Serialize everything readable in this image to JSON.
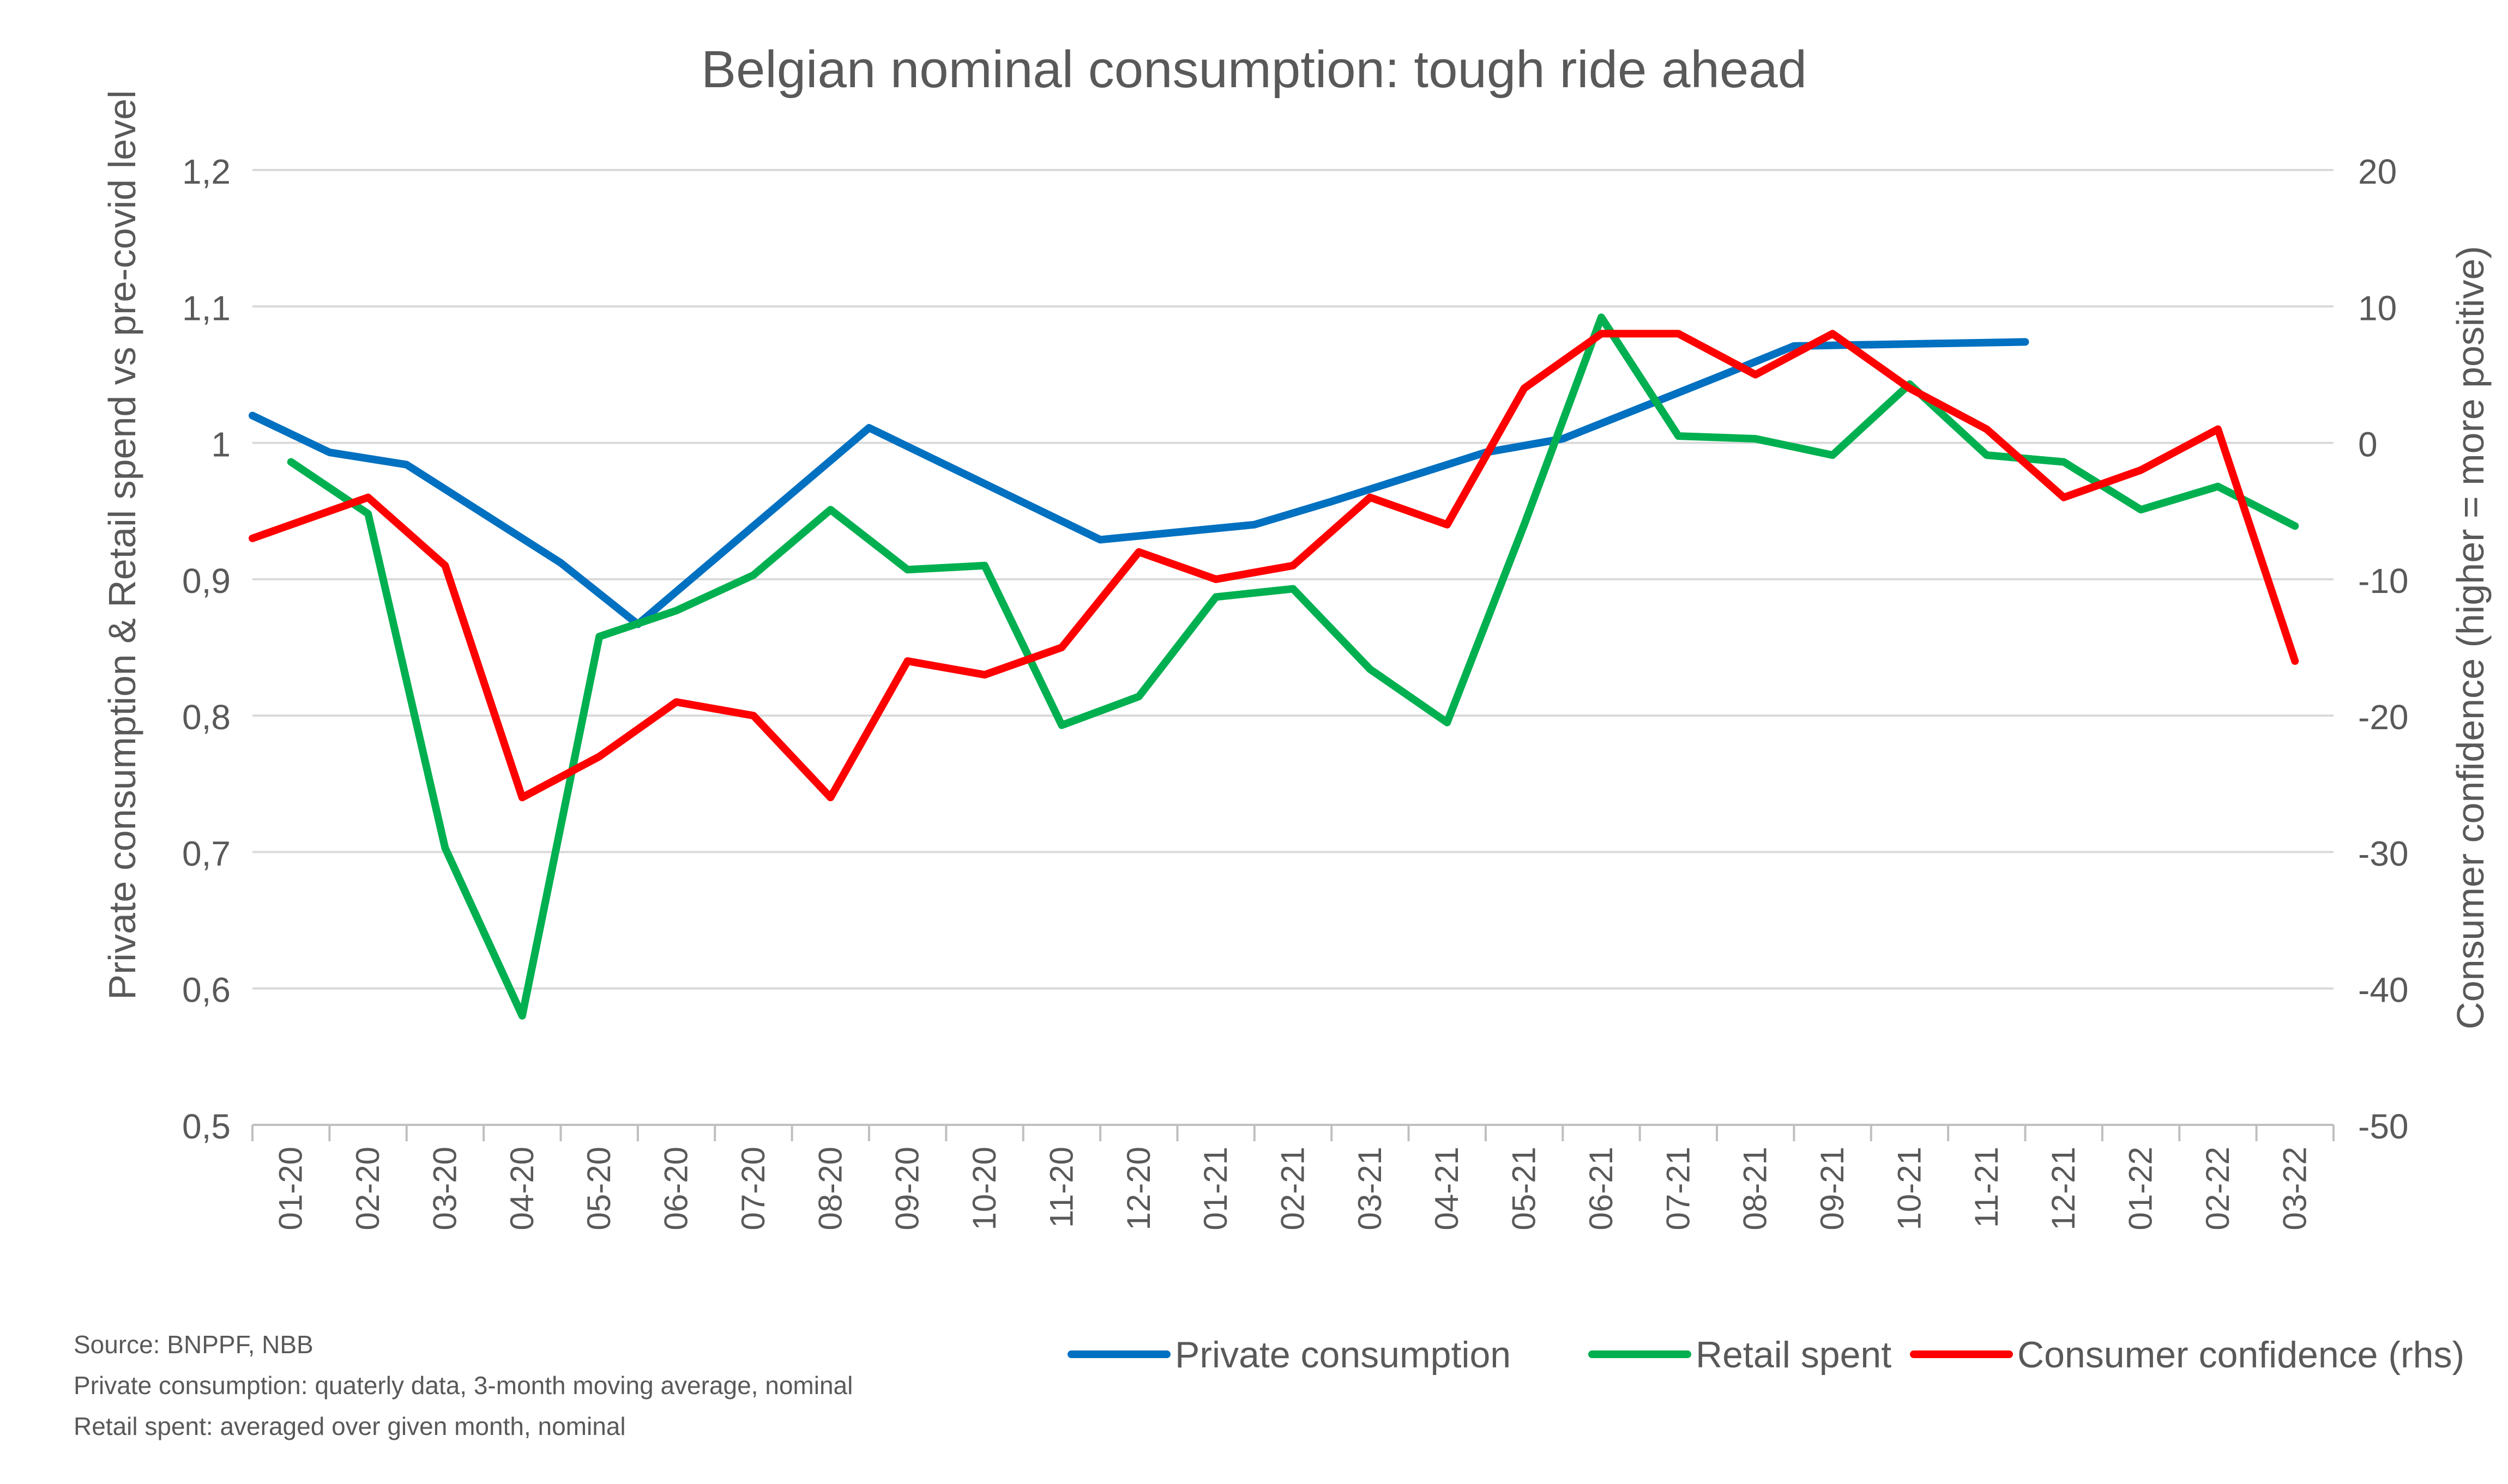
{
  "chart_data": {
    "type": "line",
    "title": "Belgian nominal consumption: tough ride ahead",
    "ylabel": "Private consumption & Retail spend vs pre-covid level",
    "y2label": "Consumer confidence (higher = more positive)",
    "ylim": [
      0.5,
      1.2
    ],
    "y2lim": [
      -50,
      20
    ],
    "yticks": [
      "0,5",
      "0,6",
      "0,7",
      "0,8",
      "0,9",
      "1",
      "1,1",
      "1,2"
    ],
    "y2ticks": [
      "-50",
      "-40",
      "-30",
      "-20",
      "-10",
      "0",
      "10",
      "20"
    ],
    "grid": true,
    "legend_position": "bottom-right",
    "categories": [
      "01-20",
      "02-20",
      "03-20",
      "04-20",
      "05-20",
      "06-20",
      "07-20",
      "08-20",
      "09-20",
      "10-20",
      "11-20",
      "12-20",
      "01-21",
      "02-21",
      "03-21",
      "04-21",
      "05-21",
      "06-21",
      "07-21",
      "08-21",
      "09-21",
      "10-21",
      "11-21",
      "12-21",
      "01-22",
      "02-22",
      "03-22"
    ],
    "series": [
      {
        "name": "Private consumption",
        "axis": "left",
        "color": "#0070C0",
        "points": [
          [
            -0.5,
            1.02
          ],
          [
            0.5,
            0.993
          ],
          [
            1.5,
            0.984
          ],
          [
            3.5,
            0.912
          ],
          [
            4.5,
            0.867
          ],
          [
            7.5,
            1.011
          ],
          [
            10.5,
            0.929
          ],
          [
            12.5,
            0.94
          ],
          [
            13.5,
            0.957
          ],
          [
            15.5,
            0.993
          ],
          [
            16.5,
            1.003
          ],
          [
            18.5,
            1.048
          ],
          [
            19.5,
            1.071
          ],
          [
            22.5,
            1.074
          ]
        ]
      },
      {
        "name": "Retail spent",
        "axis": "left",
        "color": "#00B050",
        "values": [
          0.986,
          0.948,
          0.703,
          0.58,
          0.858,
          0.877,
          0.903,
          0.951,
          0.907,
          0.91,
          0.793,
          0.814,
          0.887,
          0.893,
          0.834,
          0.795,
          0.94,
          1.092,
          1.005,
          1.003,
          0.991,
          1.043,
          0.991,
          0.986,
          0.951,
          0.968,
          0.939
        ]
      },
      {
        "name": "Consumer confidence (rhs)",
        "axis": "right",
        "color": "#FF0000",
        "points": [
          [
            -0.5,
            -7
          ],
          [
            1,
            -4
          ],
          [
            2,
            -9
          ],
          [
            3,
            -26
          ],
          [
            4,
            -23
          ],
          [
            5,
            -19
          ],
          [
            6,
            -20
          ],
          [
            7,
            -26
          ],
          [
            8,
            -16
          ],
          [
            9,
            -17
          ],
          [
            10,
            -15
          ],
          [
            11,
            -8
          ],
          [
            12,
            -10
          ],
          [
            13,
            -9
          ],
          [
            14,
            -4
          ],
          [
            15,
            -6
          ],
          [
            16,
            4
          ],
          [
            17,
            8
          ],
          [
            18,
            8
          ],
          [
            19,
            5
          ],
          [
            20,
            8
          ],
          [
            21,
            4
          ],
          [
            22,
            1
          ],
          [
            23,
            -4
          ],
          [
            24,
            -2
          ],
          [
            25,
            1
          ],
          [
            26,
            -16
          ]
        ]
      }
    ],
    "notes": [
      "Source: BNPPF, NBB",
      "Private consumption: quaterly data, 3-month moving average, nominal",
      "Retail spent: averaged over given month, nominal"
    ]
  }
}
